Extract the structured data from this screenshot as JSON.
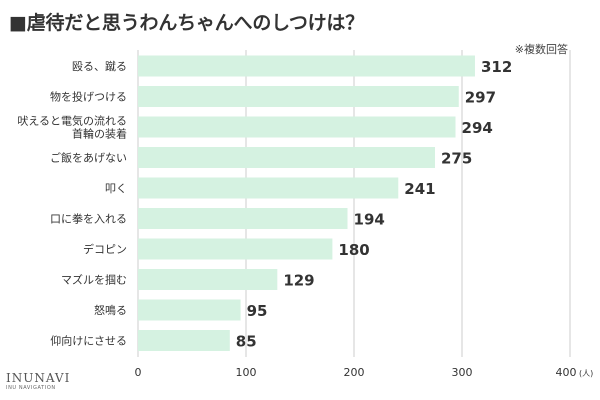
{
  "title": "■虐待だと思うわんちゃんへのしつけは？",
  "note": "※複数回答",
  "logo": {
    "main": "INUNAVI",
    "sub": "INU NAVIGATION"
  },
  "colors": {
    "bar": "#d5f2e1",
    "grid": "#cccccc",
    "text": "#333333"
  },
  "chart_data": {
    "type": "bar",
    "orientation": "horizontal",
    "categories": [
      [
        "殴る、蹴る"
      ],
      [
        "物を投げつける"
      ],
      [
        "吠えると電気の流れる",
        "首輪の装着"
      ],
      [
        "ご飯をあげない"
      ],
      [
        "叩く"
      ],
      [
        "口に拳を入れる"
      ],
      [
        "デコピン"
      ],
      [
        "マズルを掴む"
      ],
      [
        "怒鳴る"
      ],
      [
        "仰向けにさせる"
      ]
    ],
    "values": [
      312,
      297,
      294,
      275,
      241,
      194,
      180,
      129,
      95,
      85
    ],
    "xlim": [
      0,
      400
    ],
    "xticks": [
      0,
      100,
      200,
      300,
      400
    ],
    "xunit": "(人)",
    "grid": true
  }
}
